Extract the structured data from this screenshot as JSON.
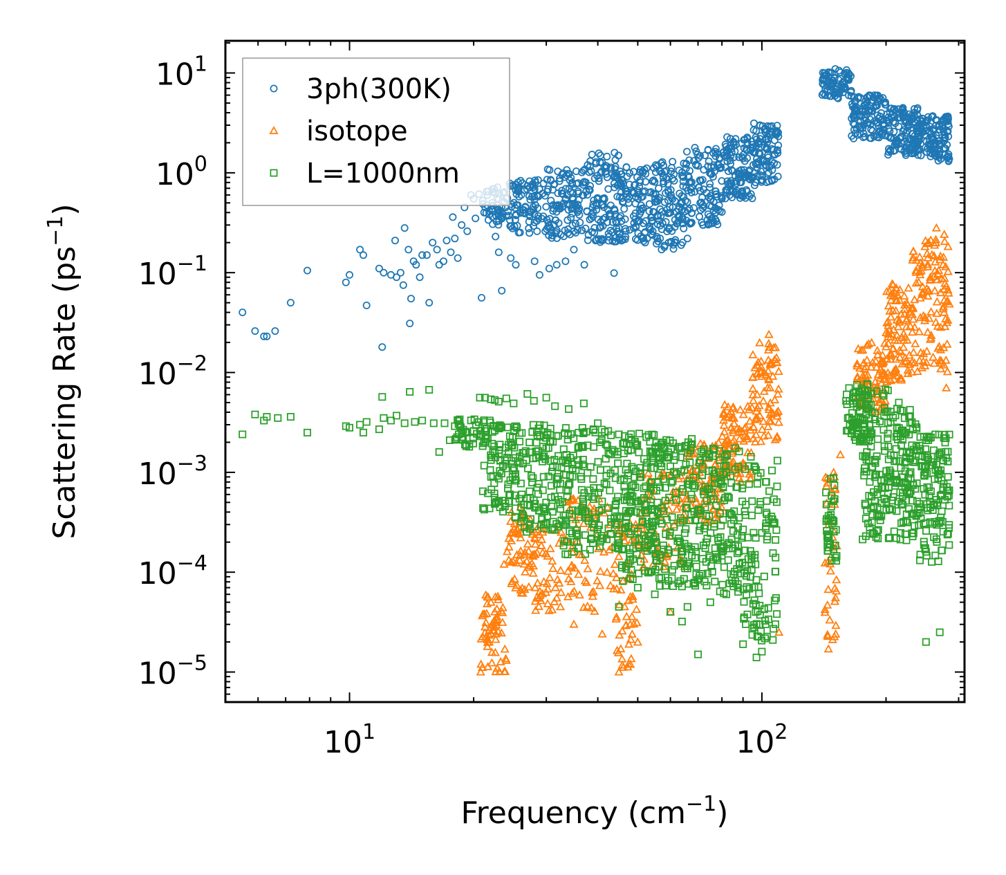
{
  "chart_data": {
    "type": "scatter",
    "xscale": "log",
    "yscale": "log",
    "xlim": [
      5,
      310
    ],
    "ylim": [
      5e-06,
      21
    ],
    "xlabel_base": "Frequency (cm",
    "xlabel_sup": "−1",
    "xlabel_end": ")",
    "ylabel_base": "Scattering Rate (ps",
    "ylabel_sup": "−1",
    "ylabel_end": ")",
    "xticks": [
      {
        "value": 10,
        "base": "10",
        "exp": "1"
      },
      {
        "value": 100,
        "base": "10",
        "exp": "2"
      }
    ],
    "yticks": [
      {
        "value": 10,
        "base": "10",
        "exp": "1"
      },
      {
        "value": 1,
        "base": "10",
        "exp": "0"
      },
      {
        "value": 0.1,
        "base": "10",
        "exp": "−1"
      },
      {
        "value": 0.01,
        "base": "10",
        "exp": "−2"
      },
      {
        "value": 0.001,
        "base": "10",
        "exp": "−3"
      },
      {
        "value": 0.0001,
        "base": "10",
        "exp": "−4"
      },
      {
        "value": 1e-05,
        "base": "10",
        "exp": "−5"
      }
    ],
    "legend_position": "top-left",
    "series": [
      {
        "name": "3ph(300K)",
        "marker": "circle",
        "color": "#1f77b4",
        "points": [
          [
            5.5,
            0.04
          ],
          [
            5.9,
            0.026
          ],
          [
            6.2,
            0.023
          ],
          [
            6.3,
            0.023
          ],
          [
            6.6,
            0.026
          ],
          [
            7.2,
            0.05
          ],
          [
            7.9,
            0.105
          ],
          [
            9.8,
            0.08
          ],
          [
            10.0,
            0.095
          ],
          [
            10.6,
            0.17
          ],
          [
            10.8,
            0.15
          ],
          [
            11.0,
            0.047
          ],
          [
            11.8,
            0.11
          ],
          [
            12.0,
            0.018
          ],
          [
            12.1,
            0.1
          ],
          [
            12.6,
            0.095
          ],
          [
            12.9,
            0.21
          ],
          [
            13.0,
            0.09
          ],
          [
            13.3,
            0.1
          ],
          [
            13.5,
            0.075
          ],
          [
            13.6,
            0.28
          ],
          [
            13.9,
            0.17
          ],
          [
            14.0,
            0.031
          ],
          [
            14.1,
            0.055
          ],
          [
            14.3,
            0.13
          ],
          [
            14.5,
            0.12
          ],
          [
            14.8,
            0.09
          ],
          [
            15.0,
            0.15
          ],
          [
            15.4,
            0.15
          ],
          [
            15.6,
            0.05
          ],
          [
            15.9,
            0.2
          ],
          [
            16.3,
            0.17
          ],
          [
            16.5,
            0.12
          ],
          [
            16.9,
            0.13
          ],
          [
            17.2,
            0.21
          ],
          [
            17.6,
            0.16
          ],
          [
            17.8,
            0.36
          ],
          [
            18.0,
            0.22
          ],
          [
            18.3,
            0.14
          ],
          [
            18.7,
            0.3
          ],
          [
            19.0,
            0.45
          ],
          [
            19.3,
            0.26
          ],
          [
            19.7,
            0.6
          ],
          [
            20.0,
            0.55
          ],
          [
            20.2,
            0.35
          ],
          [
            20.6,
            0.61
          ],
          [
            20.9,
            0.056
          ],
          [
            21.2,
            0.4
          ],
          [
            21.7,
            0.65
          ],
          [
            22.2,
            0.5
          ],
          [
            22.6,
            0.23
          ],
          [
            23.0,
            0.16
          ],
          [
            23.4,
            0.066
          ],
          [
            24.0,
            0.55
          ],
          [
            24.6,
            0.14
          ],
          [
            25.3,
            0.12
          ],
          [
            26.1,
            0.6
          ],
          [
            27.3,
            0.25
          ],
          [
            28.1,
            0.13
          ],
          [
            28.9,
            0.095
          ],
          [
            30.5,
            0.11
          ],
          [
            31.8,
            0.12
          ],
          [
            33.4,
            0.13
          ],
          [
            35.0,
            0.17
          ],
          [
            37.1,
            0.12
          ],
          [
            39.5,
            0.21
          ],
          [
            43.8,
            0.099
          ],
          [
            45.0,
            0.28
          ],
          [
            52.0,
            0.25
          ],
          [
            58.0,
            0.18
          ],
          [
            61.0,
            0.19
          ],
          [
            66.0,
            0.22
          ],
          [
            72.0,
            0.3
          ],
          [
            80.0,
            0.55
          ],
          [
            88.0,
            0.6
          ],
          [
            96.0,
            0.75
          ]
        ],
        "bands": [
          {
            "x": [
              21.0,
              24.0
            ],
            "ylow": 0.3,
            "yhigh": 0.72,
            "n": 45
          },
          {
            "x": [
              24.0,
              30.0
            ],
            "ylow": 0.25,
            "yhigh": 0.85,
            "n": 90
          },
          {
            "x": [
              30.0,
              36.0
            ],
            "ylow": 0.22,
            "yhigh": 1.1,
            "n": 100
          },
          {
            "x": [
              36.0,
              45.0
            ],
            "ylow": 0.2,
            "yhigh": 1.6,
            "n": 130
          },
          {
            "x": [
              45.0,
              55.0
            ],
            "ylow": 0.2,
            "yhigh": 1.2,
            "n": 120
          },
          {
            "x": [
              55.0,
              65.0
            ],
            "ylow": 0.17,
            "yhigh": 1.4,
            "n": 110
          },
          {
            "x": [
              65.0,
              80.0
            ],
            "ylow": 0.3,
            "yhigh": 1.8,
            "n": 120
          },
          {
            "x": [
              80.0,
              95.0
            ],
            "ylow": 0.55,
            "yhigh": 2.3,
            "n": 110
          },
          {
            "x": [
              95.0,
              110.0
            ],
            "ylow": 0.8,
            "yhigh": 3.2,
            "n": 100
          },
          {
            "x": [
              140.0,
              165.0
            ],
            "ylow": 5.5,
            "yhigh": 11.0,
            "n": 80
          },
          {
            "x": [
              165.0,
              200.0
            ],
            "ylow": 2.2,
            "yhigh": 6.0,
            "n": 120
          },
          {
            "x": [
              200.0,
              240.0
            ],
            "ylow": 1.5,
            "yhigh": 4.5,
            "n": 130
          },
          {
            "x": [
              240.0,
              285.0
            ],
            "ylow": 1.3,
            "yhigh": 3.8,
            "n": 120
          }
        ]
      },
      {
        "name": "isotope",
        "marker": "triangle",
        "color": "#ff7f0e",
        "points": [
          [
            20.8,
            1e-05
          ],
          [
            21.6,
            1.8e-05
          ],
          [
            22.5,
            4e-05
          ],
          [
            23.7,
            0.00012
          ],
          [
            24.9,
            0.00025
          ],
          [
            26.0,
            0.00045
          ],
          [
            27.0,
            0.00028
          ],
          [
            28.2,
            0.00015
          ],
          [
            29.6,
            8e-05
          ],
          [
            31.0,
            4.2e-05
          ],
          [
            35.0,
            3e-05
          ],
          [
            41.0,
            2.4e-05
          ],
          [
            45.0,
            1e-05
          ],
          [
            47.5,
            1.2e-05
          ],
          [
            60.0,
            4e-05
          ],
          [
            75.0,
            0.0008
          ],
          [
            85.0,
            0.002
          ],
          [
            104.0,
            0.024
          ],
          [
            110.0,
            2.5e-05
          ],
          [
            145.0,
            1.7e-05
          ],
          [
            150.0,
            0.0009
          ],
          [
            155.0,
            0.0015
          ],
          [
            180.0,
            0.005
          ],
          [
            230.0,
            0.04
          ],
          [
            240.0,
            0.08
          ],
          [
            265.0,
            0.28
          ],
          [
            275.0,
            0.12
          ],
          [
            280.0,
            0.007
          ]
        ],
        "bands": [
          {
            "x": [
              20.8,
              24.0
            ],
            "ylow": 1e-05,
            "yhigh": 6e-05,
            "n": 60
          },
          {
            "x": [
              24.0,
              28.0
            ],
            "ylow": 6e-05,
            "yhigh": 0.0004,
            "n": 60
          },
          {
            "x": [
              28.0,
              33.0
            ],
            "ylow": 4e-05,
            "yhigh": 0.0003,
            "n": 50
          },
          {
            "x": [
              33.0,
              44.0
            ],
            "ylow": 4e-05,
            "yhigh": 0.0006,
            "n": 70
          },
          {
            "x": [
              44.0,
              50.0
            ],
            "ylow": 1e-05,
            "yhigh": 0.0004,
            "n": 60
          },
          {
            "x": [
              50.0,
              65.0
            ],
            "ylow": 0.0001,
            "yhigh": 0.001,
            "n": 80
          },
          {
            "x": [
              65.0,
              80.0
            ],
            "ylow": 0.0003,
            "yhigh": 0.002,
            "n": 90
          },
          {
            "x": [
              80.0,
              95.0
            ],
            "ylow": 0.0008,
            "yhigh": 0.005,
            "n": 90
          },
          {
            "x": [
              95.0,
              110.0
            ],
            "ylow": 0.002,
            "yhigh": 0.02,
            "n": 80
          },
          {
            "x": [
              142.0,
              152.0
            ],
            "ylow": 2e-05,
            "yhigh": 0.001,
            "n": 40
          },
          {
            "x": [
              170.0,
              200.0
            ],
            "ylow": 0.004,
            "yhigh": 0.02,
            "n": 90
          },
          {
            "x": [
              200.0,
              230.0
            ],
            "ylow": 0.008,
            "yhigh": 0.08,
            "n": 90
          },
          {
            "x": [
              230.0,
              285.0
            ],
            "ylow": 0.01,
            "yhigh": 0.25,
            "n": 130
          }
        ]
      },
      {
        "name": "L=1000nm",
        "marker": "square",
        "color": "#2ca02c",
        "points": [
          [
            5.5,
            0.0024
          ],
          [
            5.9,
            0.0038
          ],
          [
            6.2,
            0.0033
          ],
          [
            6.3,
            0.0036
          ],
          [
            6.7,
            0.0035
          ],
          [
            7.2,
            0.0036
          ],
          [
            7.9,
            0.0025
          ],
          [
            9.8,
            0.0029
          ],
          [
            10.0,
            0.0028
          ],
          [
            10.6,
            0.003
          ],
          [
            10.8,
            0.0025
          ],
          [
            11.0,
            0.0032
          ],
          [
            11.8,
            0.0027
          ],
          [
            12.0,
            0.0057
          ],
          [
            12.1,
            0.0035
          ],
          [
            12.6,
            0.0033
          ],
          [
            13.0,
            0.0037
          ],
          [
            13.6,
            0.0031
          ],
          [
            14.0,
            0.0064
          ],
          [
            14.4,
            0.0032
          ],
          [
            15.0,
            0.0033
          ],
          [
            15.6,
            0.0067
          ],
          [
            16.0,
            0.0031
          ],
          [
            16.5,
            0.0016
          ],
          [
            17.0,
            0.0031
          ],
          [
            17.5,
            0.0021
          ],
          [
            18.0,
            0.0029
          ],
          [
            18.6,
            0.0028
          ],
          [
            19.3,
            0.0025
          ],
          [
            20.0,
            0.0026
          ],
          [
            20.7,
            0.0056
          ],
          [
            21.3,
            0.0056
          ],
          [
            22.0,
            0.0054
          ],
          [
            22.5,
            0.0053
          ],
          [
            23.0,
            0.0051
          ],
          [
            24.0,
            0.0055
          ],
          [
            25.0,
            0.0049
          ],
          [
            27.0,
            0.0061
          ],
          [
            28.0,
            0.0052
          ],
          [
            30.0,
            0.0056
          ],
          [
            31.5,
            0.0046
          ],
          [
            34.0,
            0.0043
          ],
          [
            37.0,
            0.0049
          ],
          [
            40.0,
            0.0031
          ],
          [
            45.0,
            0.0024
          ],
          [
            48.0,
            0.00013
          ],
          [
            50.0,
            7e-05
          ],
          [
            55.0,
            6e-05
          ],
          [
            60.0,
            4e-05
          ],
          [
            64.0,
            3.2e-05
          ],
          [
            70.0,
            1.5e-05
          ],
          [
            75.0,
            5e-05
          ],
          [
            82.0,
            6e-05
          ],
          [
            90.0,
            1.9e-05
          ],
          [
            97.0,
            1.4e-05
          ],
          [
            100.0,
            1.6e-05
          ],
          [
            45.0,
            4.5e-05
          ],
          [
            66.0,
            4.5e-05
          ],
          [
            160.0,
            0.0052
          ],
          [
            170.0,
            0.0075
          ],
          [
            190.0,
            0.0065
          ],
          [
            250.0,
            2e-05
          ],
          [
            270.0,
            2.5e-05
          ]
        ],
        "bands": [
          {
            "x": [
              18.0,
              22.0
            ],
            "ylow": 0.0018,
            "yhigh": 0.0034,
            "n": 40
          },
          {
            "x": [
              21.0,
              25.0
            ],
            "ylow": 0.0004,
            "yhigh": 0.0032,
            "n": 80
          },
          {
            "x": [
              25.0,
              33.0
            ],
            "ylow": 0.00025,
            "yhigh": 0.003,
            "n": 140
          },
          {
            "x": [
              33.0,
              45.0
            ],
            "ylow": 0.00015,
            "yhigh": 0.0028,
            "n": 170
          },
          {
            "x": [
              45.0,
              55.0
            ],
            "ylow": 8e-05,
            "yhigh": 0.0025,
            "n": 150
          },
          {
            "x": [
              55.0,
              70.0
            ],
            "ylow": 7e-05,
            "yhigh": 0.0022,
            "n": 160
          },
          {
            "x": [
              70.0,
              90.0
            ],
            "ylow": 6e-05,
            "yhigh": 0.0018,
            "n": 150
          },
          {
            "x": [
              90.0,
              110.0
            ],
            "ylow": 2e-05,
            "yhigh": 0.0015,
            "n": 110
          },
          {
            "x": [
              143.0,
              152.0
            ],
            "ylow": 0.00012,
            "yhigh": 0.0009,
            "n": 40
          },
          {
            "x": [
              160.0,
              185.0
            ],
            "ylow": 0.002,
            "yhigh": 0.008,
            "n": 80
          },
          {
            "x": [
              175.0,
              205.0
            ],
            "ylow": 0.0002,
            "yhigh": 0.007,
            "n": 110
          },
          {
            "x": [
              205.0,
              240.0
            ],
            "ylow": 0.0002,
            "yhigh": 0.005,
            "n": 120
          },
          {
            "x": [
              240.0,
              285.0
            ],
            "ylow": 0.00012,
            "yhigh": 0.0025,
            "n": 130
          }
        ]
      }
    ]
  }
}
